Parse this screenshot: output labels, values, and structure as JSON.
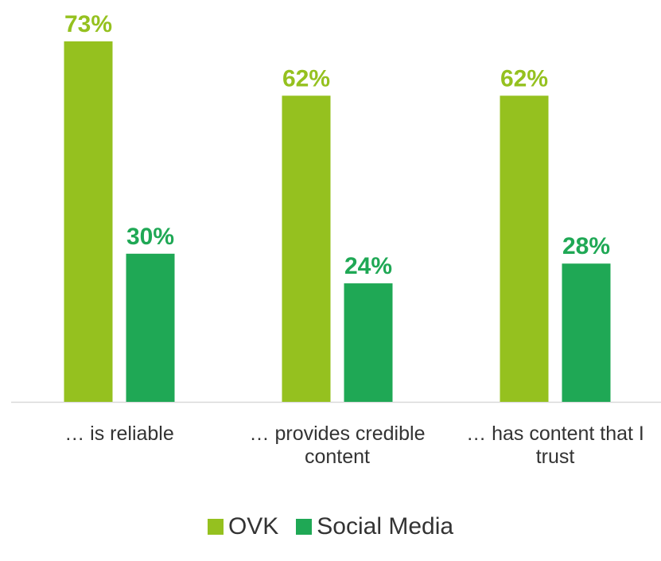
{
  "chart_data": {
    "type": "bar",
    "categories_lines": [
      [
        "… is reliable"
      ],
      [
        "… provides credible",
        "content"
      ],
      [
        "… has content that I",
        "trust"
      ]
    ],
    "series": [
      {
        "name": "OVK",
        "color": "#95c11f",
        "values": [
          73,
          62,
          62
        ],
        "labels": [
          "73%",
          "62%",
          "62%"
        ]
      },
      {
        "name": "Social Media",
        "color": "#1fa855",
        "values": [
          30,
          24,
          28
        ],
        "labels": [
          "30%",
          "24%",
          "28%"
        ]
      }
    ],
    "ylim": [
      0,
      73
    ],
    "grid": false,
    "legend_position": "bottom"
  }
}
